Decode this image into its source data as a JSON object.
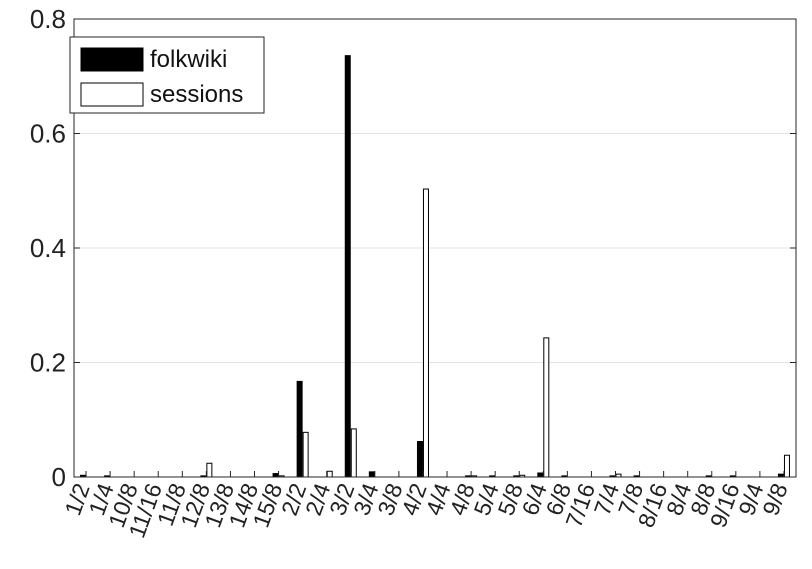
{
  "chart_data": {
    "type": "bar",
    "categories": [
      "1/2",
      "1/4",
      "10/8",
      "11/16",
      "11/8",
      "12/8",
      "13/8",
      "14/8",
      "15/8",
      "2/2",
      "2/4",
      "3/2",
      "3/4",
      "3/8",
      "4/2",
      "4/4",
      "4/8",
      "5/4",
      "5/8",
      "6/4",
      "6/8",
      "7/16",
      "7/4",
      "7/8",
      "8/16",
      "8/4",
      "8/8",
      "9/16",
      "9/4",
      "9/8"
    ],
    "series": [
      {
        "name": "folkwiki",
        "color": "#000000",
        "values": [
          0.003,
          0.002,
          0.0,
          0.0,
          0.0,
          0.002,
          0.0,
          0.0,
          0.006,
          0.167,
          0.0,
          0.736,
          0.009,
          0.0,
          0.062,
          0.0,
          0.002,
          0.002,
          0.002,
          0.007,
          0.002,
          0.0,
          0.002,
          0.002,
          0.0,
          0.0,
          0.002,
          0.002,
          0.0,
          0.005
        ]
      },
      {
        "name": "sessions",
        "color": "#ffffff",
        "values": [
          0.0,
          0.0,
          0.0,
          0.0,
          0.0,
          0.024,
          0.0,
          0.0,
          0.002,
          0.078,
          0.01,
          0.084,
          0.0,
          0.0,
          0.503,
          0.0,
          0.002,
          0.0,
          0.003,
          0.243,
          0.0,
          0.0,
          0.005,
          0.0,
          0.0,
          0.0,
          0.0,
          0.0,
          0.0,
          0.038
        ]
      }
    ],
    "title": "",
    "xlabel": "",
    "ylabel": "",
    "ylim": [
      0,
      0.8
    ],
    "yticks": [
      0,
      0.2,
      0.4,
      0.6,
      0.8
    ],
    "ytick_labels": [
      "0",
      "0.2",
      "0.4",
      "0.6",
      "0.8"
    ],
    "grid": "horizontal",
    "legend_position": "top-left"
  },
  "legend": {
    "items": [
      {
        "label": "folkwiki",
        "fill": "#000000"
      },
      {
        "label": "sessions",
        "fill": "#ffffff"
      }
    ]
  }
}
